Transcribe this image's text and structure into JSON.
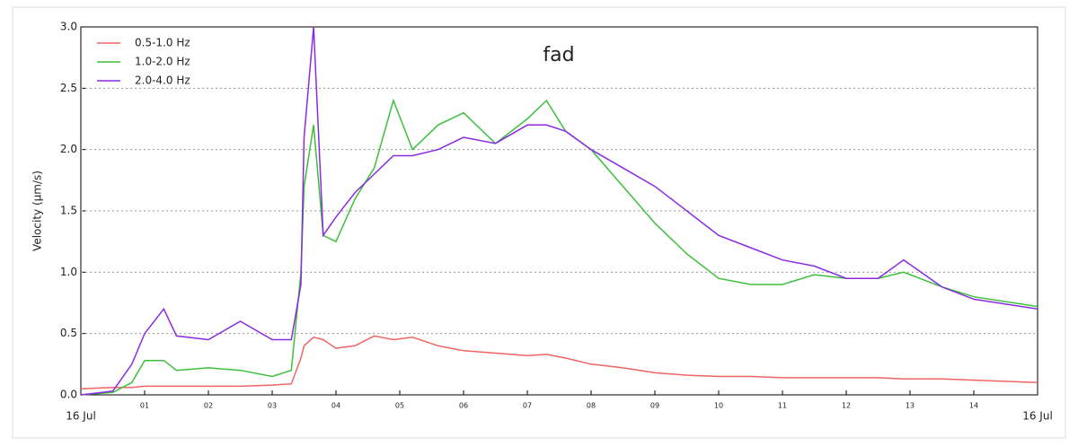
{
  "chart_data": {
    "type": "line",
    "title": "fad",
    "y_label": "Velocity (μm/s)",
    "grid": true,
    "legend": "upper left",
    "xlim": [
      0,
      15
    ],
    "xticks": [
      {
        "value": 0,
        "label": "16 Jul"
      },
      {
        "value": 1,
        "label": "01"
      },
      {
        "value": 2,
        "label": "02"
      },
      {
        "value": 3,
        "label": "03"
      },
      {
        "value": 4,
        "label": "04"
      },
      {
        "value": 5,
        "label": "05"
      },
      {
        "value": 6,
        "label": "06"
      },
      {
        "value": 7,
        "label": "07"
      },
      {
        "value": 8,
        "label": "08"
      },
      {
        "value": 9,
        "label": "09"
      },
      {
        "value": 10,
        "label": "10"
      },
      {
        "value": 11,
        "label": "11"
      },
      {
        "value": 12,
        "label": "12"
      },
      {
        "value": 13,
        "label": "13"
      },
      {
        "value": 14,
        "label": "14"
      },
      {
        "value": 15,
        "label": "16 Jul"
      }
    ],
    "ylim": [
      0,
      3
    ],
    "yticks": [
      {
        "value": 0,
        "label": "0.0"
      },
      {
        "value": 0.5,
        "label": "0.5"
      },
      {
        "value": 1,
        "label": "1.0"
      },
      {
        "value": 1.5,
        "label": "1.5"
      },
      {
        "value": 2,
        "label": "2.0"
      },
      {
        "value": 2.5,
        "label": "2.5"
      },
      {
        "value": 3,
        "label": "3.0"
      }
    ],
    "x": [
      0,
      0.5,
      0.8,
      1,
      1.3,
      1.5,
      2,
      2.5,
      3,
      3.3,
      3.45,
      3.5,
      3.65,
      3.8,
      4,
      4.3,
      4.6,
      4.9,
      5.2,
      5.6,
      6,
      6.5,
      7,
      7.3,
      7.6,
      8,
      8.5,
      9,
      9.5,
      10,
      10.5,
      11,
      11.5,
      12,
      12.5,
      12.9,
      13.5,
      14,
      15
    ],
    "series": [
      {
        "name": "0.5-1.0 Hz",
        "color": "#f06464",
        "values": [
          0.05,
          0.06,
          0.06,
          0.07,
          0.07,
          0.07,
          0.07,
          0.07,
          0.08,
          0.09,
          0.3,
          0.4,
          0.47,
          0.45,
          0.38,
          0.4,
          0.48,
          0.45,
          0.47,
          0.4,
          0.36,
          0.34,
          0.32,
          0.33,
          0.3,
          0.25,
          0.22,
          0.18,
          0.16,
          0.15,
          0.15,
          0.14,
          0.14,
          0.14,
          0.14,
          0.13,
          0.13,
          0.12,
          0.1
        ]
      },
      {
        "name": "1.0-2.0 Hz",
        "color": "#3cbf3c",
        "values": [
          0,
          0.02,
          0.1,
          0.28,
          0.28,
          0.2,
          0.22,
          0.2,
          0.15,
          0.2,
          1.0,
          1.7,
          2.2,
          1.3,
          1.25,
          1.6,
          1.85,
          2.4,
          2.0,
          2.2,
          2.3,
          2.05,
          2.25,
          2.4,
          2.15,
          2.0,
          1.7,
          1.4,
          1.15,
          0.95,
          0.9,
          0.9,
          0.98,
          0.95,
          0.95,
          1.0,
          0.88,
          0.8,
          0.72
        ]
      },
      {
        "name": "2.0-4.0 Hz",
        "color": "#8a2be2",
        "values": [
          0,
          0.03,
          0.25,
          0.5,
          0.7,
          0.48,
          0.45,
          0.6,
          0.45,
          0.45,
          0.9,
          2.1,
          3.0,
          1.3,
          1.45,
          1.65,
          1.8,
          1.95,
          1.95,
          2.0,
          2.1,
          2.05,
          2.2,
          2.2,
          2.15,
          2.0,
          1.85,
          1.7,
          1.5,
          1.3,
          1.2,
          1.1,
          1.05,
          0.95,
          0.95,
          1.1,
          0.88,
          0.78,
          0.7
        ]
      }
    ]
  }
}
